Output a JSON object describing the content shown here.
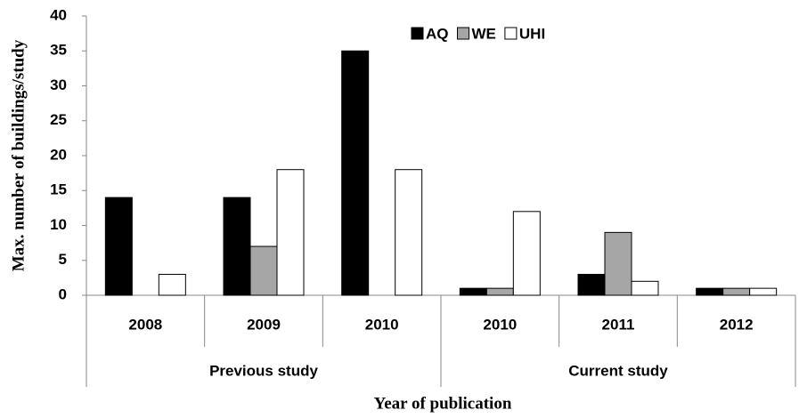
{
  "chart_data": {
    "type": "bar",
    "y_label": "Max. number of buildings/study",
    "x_label": "Year of  publication",
    "categories": [
      "2008",
      "2009",
      "2010",
      "2010",
      "2011",
      "2012"
    ],
    "group_labels": [
      "Previous study",
      "Current study"
    ],
    "series": [
      {
        "name": "AQ",
        "color": "#000000",
        "values": [
          14,
          14,
          35,
          1,
          3,
          1
        ]
      },
      {
        "name": "WE",
        "color": "#a6a6a6",
        "values": [
          0,
          7,
          0,
          1,
          9,
          1
        ]
      },
      {
        "name": "UHI",
        "color": "#ffffff",
        "values": [
          3,
          18,
          18,
          12,
          2,
          1
        ]
      }
    ],
    "ylim": [
      0,
      40
    ],
    "yticks": [
      0,
      5,
      10,
      15,
      20,
      25,
      30,
      35,
      40
    ],
    "grid": false
  }
}
